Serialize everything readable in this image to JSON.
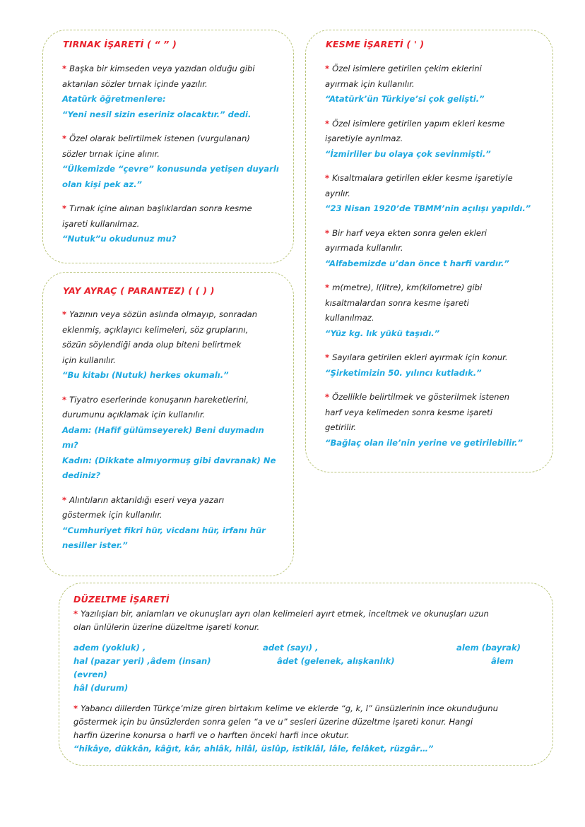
{
  "colors": {
    "heading": "#e8202a",
    "example": "#1ea9e0",
    "border": "#b9c47a",
    "text": "#222222"
  },
  "sections": {
    "tirnak": {
      "title": "TIRNAK İŞARETİ ( “ ” )",
      "items": [
        {
          "text": [
            "Başka bir kimseden veya yazıdan olduğu gibi",
            "aktarılan sözler tırnak içinde yazılır."
          ],
          "examples": [
            "Atatürk öğretmenlere:",
            "“Yeni nesil sizin eseriniz olacaktır.” dedi."
          ]
        },
        {
          "text": [
            "Özel olarak belirtilmek istenen (vurgulanan)",
            "sözler tırnak içine alınır."
          ],
          "examples": [
            "“Ülkemizde “çevre” konusunda yetişen duyarlı",
            "olan kişi pek az.”"
          ]
        },
        {
          "text": [
            "Tırnak içine alınan başlıklardan sonra kesme",
            "işareti kullanılmaz."
          ],
          "examples": [
            "“Nutuk”u okudunuz mu?"
          ]
        }
      ]
    },
    "yay_ayrac": {
      "title": "YAY AYRAÇ ( PARANTEZ) ( (  ) )",
      "items": [
        {
          "text": [
            "Yazının veya sözün aslında olmayıp, sonradan",
            "eklenmiş, açıklayıcı kelimeleri, söz gruplarını,",
            "sözün söylendiği anda olup biteni belirtmek",
            "için kullanılır."
          ],
          "examples": [
            "“Bu kitabı (Nutuk) herkes okumalı.”"
          ]
        },
        {
          "text": [
            "Tiyatro eserlerinde konuşanın hareketlerini,",
            "durumunu açıklamak için kullanılır."
          ],
          "examples": [
            "Adam: (Hafif gülümseyerek) Beni duymadın",
            "mı?",
            "Kadın: (Dikkate almıyormuş gibi davranak) Ne",
            "dediniz?"
          ]
        },
        {
          "text": [
            "Alıntıların aktarıldığı eseri veya yazarı",
            "göstermek için kullanılır."
          ],
          "examples": [
            "“Cumhuriyet fikri hür, vicdanı hür, irfanı hür",
            "nesiller ister.”"
          ]
        }
      ]
    },
    "kesme": {
      "title": "KESME İŞARETİ ( ' )",
      "items": [
        {
          "text": [
            "Özel isimlere getirilen çekim eklerini",
            "ayırmak için kullanılır."
          ],
          "examples": [
            "“Atatürk’ün Türkiye’si çok gelişti.”"
          ]
        },
        {
          "text": [
            "Özel isimlere getirilen yapım ekleri kesme",
            "işaretiyle ayrılmaz."
          ],
          "examples": [
            "“İzmirliler bu olaya çok sevinmişti.”"
          ]
        },
        {
          "text": [
            "Kısaltmalara getirilen ekler kesme işaretiyle",
            "ayrılır."
          ],
          "examples": [
            "“23 Nisan 1920’de TBMM’nin açılışı yapıldı.”"
          ]
        },
        {
          "text": [
            "Bir harf veya ekten sonra gelen ekleri",
            "ayırmada kullanılır."
          ],
          "examples": [
            "“Alfabemizde u’dan önce t harfi vardır.”"
          ]
        },
        {
          "text": [
            "m(metre), l(litre), km(kilometre) gibi",
            "kısaltmalardan sonra kesme işareti",
            "kullanılmaz."
          ],
          "examples": [
            "“Yüz kg. lık yükü taşıdı.”"
          ]
        },
        {
          "text": [
            "Sayılara getirilen ekleri ayırmak için konur."
          ],
          "examples": [
            "“Şirketimizin 50. yılıncı kutladık.”"
          ]
        },
        {
          "text": [
            "Özellikle belirtilmek ve gösterilmek istenen",
            "harf veya kelimeden sonra kesme işareti",
            "getirilir."
          ],
          "examples": [
            "“Bağlaç olan ile’nin yerine ve getirilebilir.”"
          ]
        }
      ]
    },
    "duzeltme": {
      "title": "DÜZELTME İŞARETİ",
      "item1": {
        "text": [
          "Yazılışları bir, anlamları ve okunuşları ayrı olan kelimeleri ayırt etmek, inceltmek ve okunuşları uzun",
          "olan ünlülerin üzerine düzeltme işareti konur."
        ]
      },
      "words": {
        "r1c1": "adem (yokluk) ,",
        "r1c2": "adet (sayı) ,",
        "r1c3": "alem (bayrak)",
        "r2c1": "hal (pazar yeri) ,âdem (insan)",
        "r2c2": "âdet (gelenek, alışkanlık)",
        "r2c3": "âlem",
        "r3c1": "(evren)",
        "r4c1": "hâl (durum)"
      },
      "item2": {
        "text": [
          "Yabancı dillerden Türkçe’mize giren birtakım kelime ve eklerde “g, k, l” ünsüzlerinin ince okunduğunu",
          "göstermek için bu ünsüzlerden sonra gelen “a ve u” sesleri üzerine düzeltme işareti konur. Hangi",
          "harfin üzerine konursa o harfi ve o harften önceki harfi ince okutur."
        ],
        "examples": [
          "“hikâye, dükkân, kâğıt, kâr, ahlâk, hilâl, üslûp, istiklâl, lâle, felâket, rüzgâr…”"
        ]
      }
    }
  }
}
